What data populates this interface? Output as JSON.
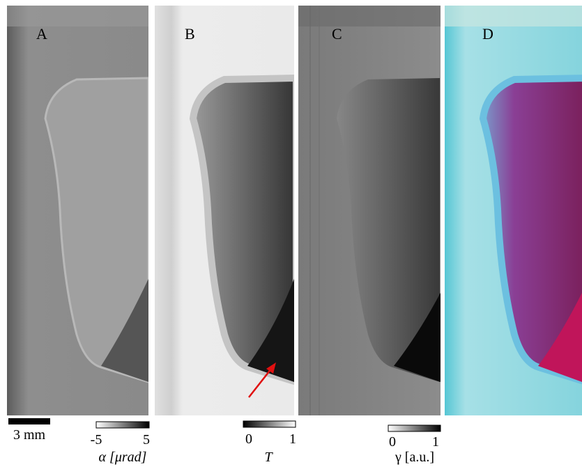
{
  "panels": [
    {
      "label": "A"
    },
    {
      "label": "B"
    },
    {
      "label": "C"
    },
    {
      "label": "D"
    }
  ],
  "scale_bar": {
    "label": "3 mm"
  },
  "colorbars": [
    {
      "min": "-5",
      "max": "5",
      "label": "α [μrad]"
    },
    {
      "min": "0",
      "max": "1",
      "label": "T"
    },
    {
      "min": "0",
      "max": "1",
      "label": "γ [a.u.]"
    }
  ]
}
